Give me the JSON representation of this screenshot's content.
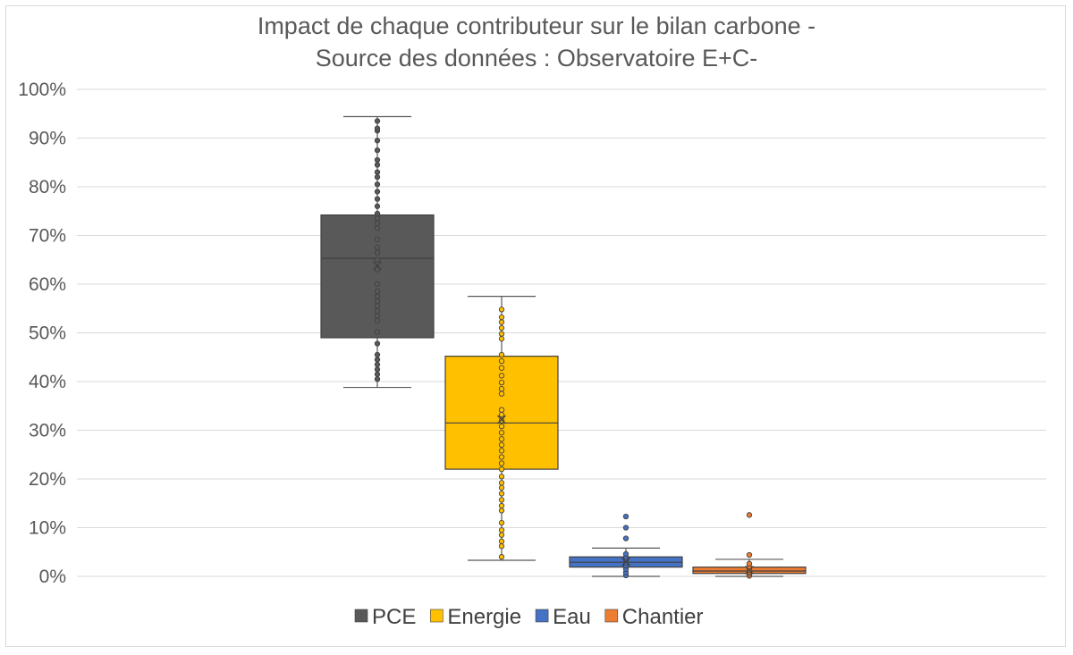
{
  "chart_data": {
    "type": "boxplot",
    "title": [
      "Impact de chaque contributeur sur le bilan carbone -",
      "Source des données : Observatoire E+C-"
    ],
    "y_ticks": [
      "0%",
      "10%",
      "20%",
      "30%",
      "40%",
      "50%",
      "60%",
      "70%",
      "80%",
      "90%",
      "100%"
    ],
    "ylim": [
      0,
      100
    ],
    "grid": true,
    "legend_position": "bottom",
    "series": [
      {
        "name": "PCE",
        "color": "#595959",
        "marker_fill": "#595959",
        "whisker_low": 38.8,
        "q1": 49.0,
        "median": 65.3,
        "q3": 74.2,
        "whisker_high": 94.4,
        "mean": 63.8,
        "points": [
          40.5,
          41.5,
          42.5,
          43.5,
          44.5,
          45.5,
          47.8,
          50.2,
          52.5,
          53.5,
          54.5,
          55.5,
          56.5,
          57.5,
          58.5,
          60.0,
          63.0,
          65.0,
          66.5,
          67.5,
          69.2,
          71.5,
          72.5,
          73.5,
          74.5,
          76.0,
          77.5,
          79.0,
          80.5,
          82.0,
          83.0,
          84.5,
          85.5,
          87.5,
          89.5,
          91.5,
          92.0,
          93.5
        ]
      },
      {
        "name": "Energie",
        "color": "#FFC000",
        "marker_fill": "#FFC000",
        "whisker_low": 3.3,
        "q1": 22.0,
        "median": 31.5,
        "q3": 45.2,
        "whisker_high": 57.5,
        "mean": 32.2,
        "points": [
          4.0,
          6.2,
          7.2,
          8.5,
          9.5,
          11.0,
          13.5,
          14.5,
          15.7,
          17.0,
          18.2,
          19.2,
          20.5,
          22.0,
          23.2,
          24.5,
          25.8,
          27.0,
          28.2,
          29.5,
          30.8,
          32.0,
          33.2,
          34.2,
          37.5,
          38.5,
          39.8,
          41.2,
          42.8,
          44.2,
          45.5,
          48.8,
          49.8,
          51.0,
          52.2,
          53.2,
          54.8
        ]
      },
      {
        "name": "Eau",
        "color": "#4472C4",
        "marker_fill": "#4472C4",
        "whisker_low": 0.0,
        "q1": 1.9,
        "median": 2.9,
        "q3": 4.0,
        "whisker_high": 5.8,
        "mean": 3.0,
        "points": [
          0.2,
          0.8,
          1.5,
          2.2,
          2.8,
          3.4,
          4.0,
          4.6,
          7.8,
          10.0,
          12.3
        ]
      },
      {
        "name": "Chantier",
        "color": "#ED7D31",
        "marker_fill": "#ED7D31",
        "whisker_low": 0.0,
        "q1": 0.6,
        "median": 1.1,
        "q3": 1.9,
        "whisker_high": 3.5,
        "mean": 1.3,
        "points": [
          0.1,
          0.5,
          0.9,
          1.3,
          1.9,
          2.6,
          4.4,
          12.6
        ]
      }
    ]
  }
}
